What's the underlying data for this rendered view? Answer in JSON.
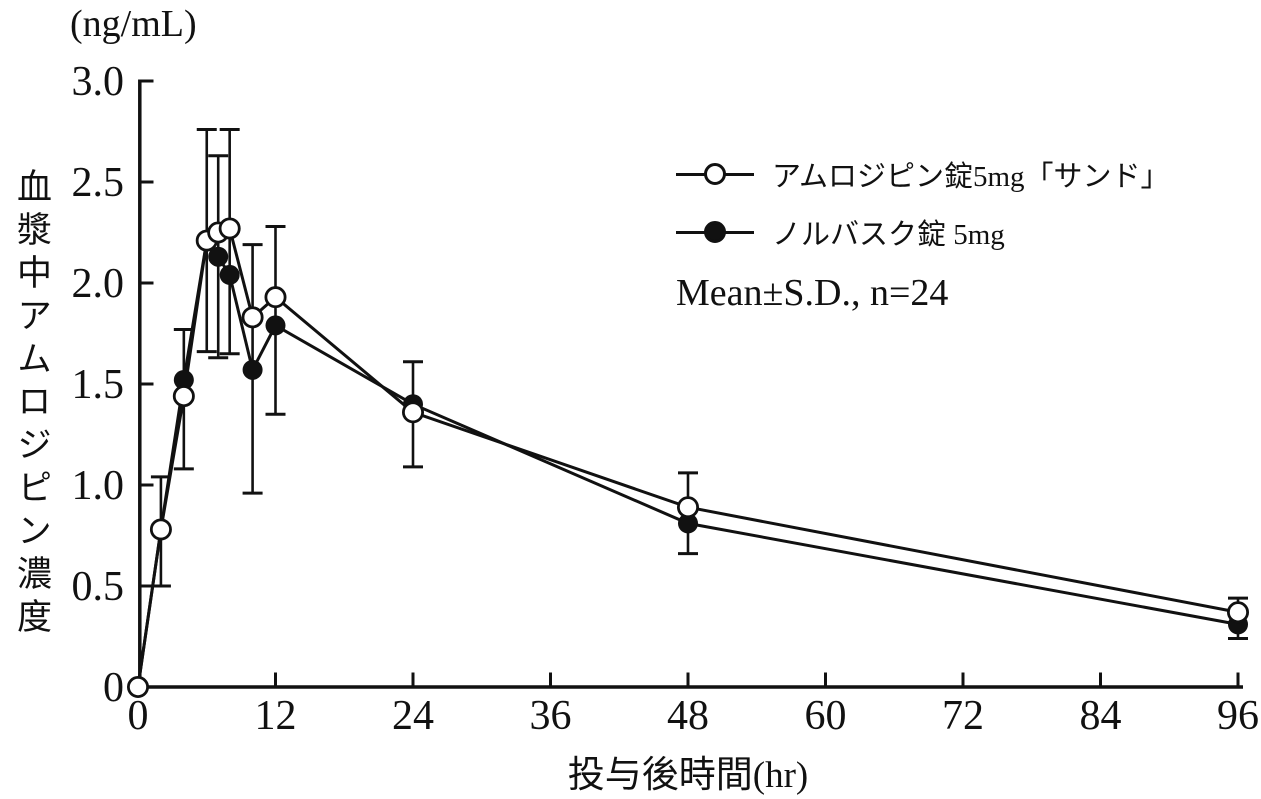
{
  "page": {
    "background": "#ffffff",
    "ink": "#111111"
  },
  "chart_data": {
    "type": "line",
    "title": "",
    "unit_label": "(ng/mL)",
    "xlabel": "投与後時間(hr)",
    "ylabel": "血漿中アムロジピン濃度",
    "annotation": "Mean±S.D., n=24",
    "xlim": [
      0,
      96
    ],
    "ylim": [
      0,
      3.0
    ],
    "x_ticks": [
      0,
      12,
      24,
      36,
      48,
      60,
      72,
      84,
      96
    ],
    "y_ticks": [
      0,
      0.5,
      1.0,
      1.5,
      2.0,
      2.5,
      3.0
    ],
    "y_tick_labels": [
      "0",
      "0.5",
      "1.0",
      "1.5",
      "2.0",
      "2.5",
      "3.0"
    ],
    "grid": false,
    "legend_position": "upper-right",
    "series": [
      {
        "name": "アムロジピン錠5mg「サンド」",
        "marker": "open-circle",
        "color": "#111111",
        "points": [
          {
            "t": 0,
            "v": 0.0,
            "lo": null,
            "hi": null
          },
          {
            "t": 2,
            "v": 0.78,
            "lo": 0.5,
            "hi": 1.04
          },
          {
            "t": 4,
            "v": 1.44,
            "lo": 1.08,
            "hi": 1.77
          },
          {
            "t": 6,
            "v": 2.21,
            "lo": 1.66,
            "hi": 2.76
          },
          {
            "t": 7,
            "v": 2.25,
            "lo": null,
            "hi": null
          },
          {
            "t": 8,
            "v": 2.27,
            "lo": 1.65,
            "hi": 2.76
          },
          {
            "t": 10,
            "v": 1.83,
            "lo": null,
            "hi": null
          },
          {
            "t": 12,
            "v": 1.93,
            "lo": 1.35,
            "hi": 2.28
          },
          {
            "t": 24,
            "v": 1.36,
            "lo": 1.09,
            "hi": 1.61
          },
          {
            "t": 48,
            "v": 0.89,
            "lo": 0.66,
            "hi": 1.06
          },
          {
            "t": 96,
            "v": 0.37,
            "lo": 0.24,
            "hi": 0.44
          }
        ]
      },
      {
        "name": "ノルバスク錠 5mg",
        "marker": "filled-circle",
        "color": "#111111",
        "points": [
          {
            "t": 0,
            "v": 0.0,
            "lo": null,
            "hi": null
          },
          {
            "t": 2,
            "v": 0.78,
            "lo": null,
            "hi": null
          },
          {
            "t": 4,
            "v": 1.52,
            "lo": null,
            "hi": null
          },
          {
            "t": 6,
            "v": 2.21,
            "lo": null,
            "hi": null
          },
          {
            "t": 7,
            "v": 2.13,
            "lo": 1.63,
            "hi": 2.63
          },
          {
            "t": 8,
            "v": 2.04,
            "lo": null,
            "hi": null
          },
          {
            "t": 10,
            "v": 1.57,
            "lo": 0.96,
            "hi": 2.19
          },
          {
            "t": 12,
            "v": 1.79,
            "lo": null,
            "hi": null
          },
          {
            "t": 24,
            "v": 1.4,
            "lo": null,
            "hi": null
          },
          {
            "t": 48,
            "v": 0.81,
            "lo": null,
            "hi": null
          },
          {
            "t": 96,
            "v": 0.31,
            "lo": null,
            "hi": null
          }
        ]
      }
    ]
  }
}
